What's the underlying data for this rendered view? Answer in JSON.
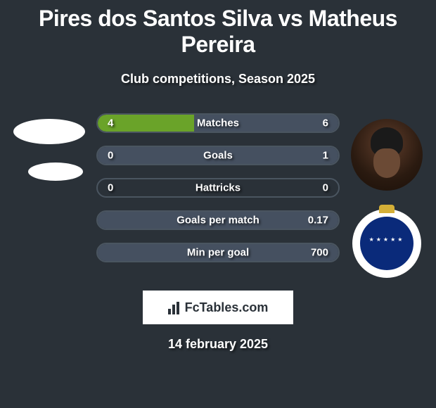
{
  "title": "Pires dos Santos Silva vs Matheus Pereira",
  "subtitle": "Club competitions, Season 2025",
  "date": "14 february 2025",
  "footer_brand": "FcTables.com",
  "colors": {
    "background": "#2a3138",
    "bar_border": "#4a5560",
    "left_fill": "#6aa329",
    "right_fill": "#455060",
    "text": "#ffffff"
  },
  "stats": [
    {
      "label": "Matches",
      "left_val": "4",
      "right_val": "6",
      "left_pct": 40,
      "right_pct": 60,
      "left_color": "#6aa329",
      "right_color": "#455060"
    },
    {
      "label": "Goals",
      "left_val": "0",
      "right_val": "1",
      "left_pct": 0,
      "right_pct": 100,
      "left_color": "#6aa329",
      "right_color": "#455060"
    },
    {
      "label": "Hattricks",
      "left_val": "0",
      "right_val": "0",
      "left_pct": 0,
      "right_pct": 0,
      "left_color": "#6aa329",
      "right_color": "#455060"
    },
    {
      "label": "Goals per match",
      "left_val": "",
      "right_val": "0.17",
      "left_pct": 0,
      "right_pct": 100,
      "left_color": "#6aa329",
      "right_color": "#455060"
    },
    {
      "label": "Min per goal",
      "left_val": "",
      "right_val": "700",
      "left_pct": 0,
      "right_pct": 100,
      "left_color": "#6aa329",
      "right_color": "#455060"
    }
  ]
}
